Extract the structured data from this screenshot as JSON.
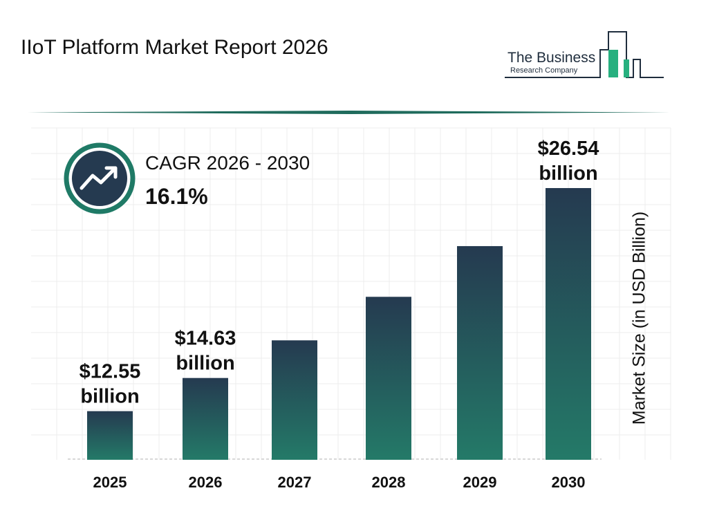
{
  "title": "IIoT Platform Market Report 2026",
  "logo": {
    "line1": "The Business",
    "line2": "Research Company"
  },
  "cagr": {
    "label": "CAGR 2026 - 2030",
    "value": "16.1%",
    "icon": "trend-up-icon"
  },
  "colors": {
    "bar_top": "#253a50",
    "bar_bottom": "#247a68",
    "accent": "#1f7a66"
  },
  "chart_data": {
    "type": "bar",
    "categories": [
      "2025",
      "2026",
      "2027",
      "2028",
      "2029",
      "2030"
    ],
    "values": [
      12.55,
      14.63,
      16.99,
      19.72,
      22.9,
      26.54
    ],
    "data_labels": [
      {
        "index": 0,
        "line1": "$12.55",
        "line2": "billion"
      },
      {
        "index": 1,
        "line1": "$14.63",
        "line2": "billion"
      },
      {
        "index": 5,
        "line1": "$26.54",
        "line2": "billion"
      }
    ],
    "ylabel": "Market Size (in USD Billion)",
    "xlabel": "",
    "grid": true
  }
}
